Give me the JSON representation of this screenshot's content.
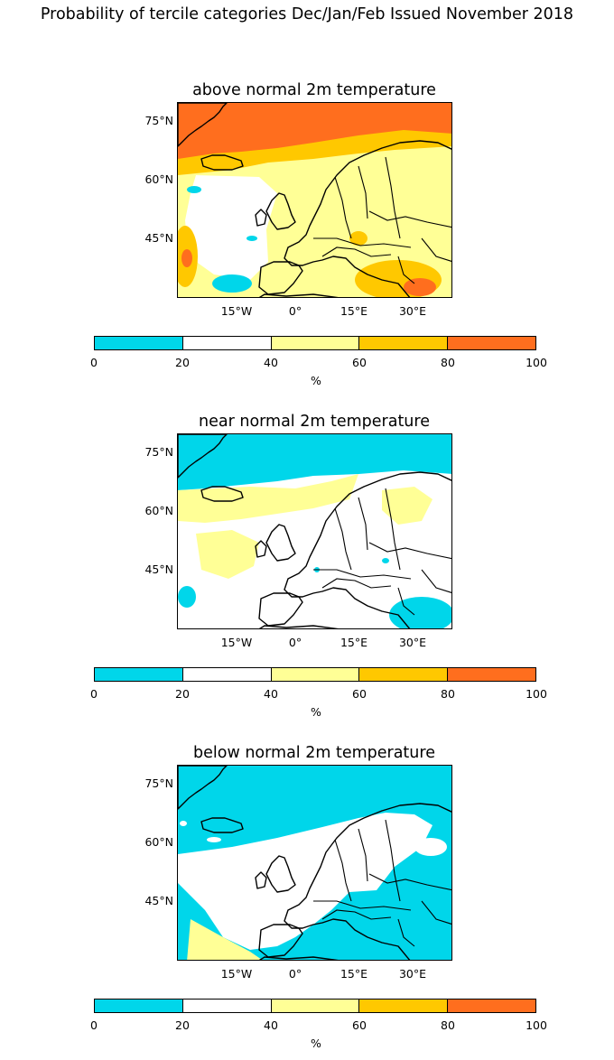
{
  "suptitle": "Probability of tercile categories Dec/Jan/Feb Issued November 2018",
  "colors": {
    "c0_20": "#00d6ea",
    "c20_40": "#ffffff",
    "c40_60": "#ffff96",
    "c60_80": "#ffc800",
    "c80_100": "#ff6e1e"
  },
  "axes": {
    "lat_labels": [
      "75°N",
      "60°N",
      "45°N"
    ],
    "lon_labels": [
      "15°W",
      "0°",
      "15°E",
      "30°E"
    ]
  },
  "colorbar": {
    "ticks": [
      "0",
      "20",
      "40",
      "60",
      "80",
      "100"
    ],
    "unit": "%"
  },
  "panels": [
    {
      "title": "above normal 2m temperature"
    },
    {
      "title": "near normal 2m temperature"
    },
    {
      "title": "below normal 2m temperature"
    }
  ]
}
